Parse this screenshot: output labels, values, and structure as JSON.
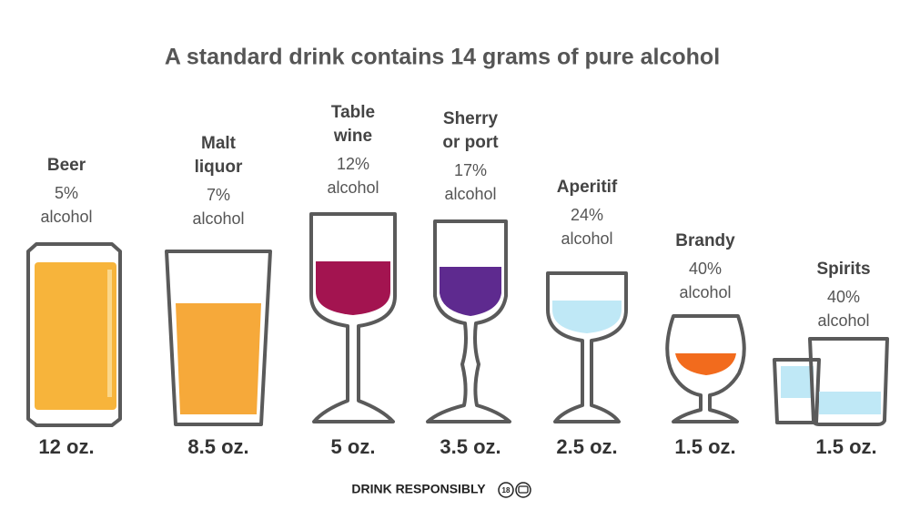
{
  "header": {
    "title": "A standard drink contains 14 grams of pure alcohol"
  },
  "drinks": [
    {
      "name": [
        "Beer"
      ],
      "abv": "5%",
      "unit": "alcohol",
      "volume": "12 oz."
    },
    {
      "name": [
        "Malt",
        "liquor"
      ],
      "abv": "7%",
      "unit": "alcohol",
      "volume": "8.5 oz."
    },
    {
      "name": [
        "Table",
        "wine"
      ],
      "abv": "12%",
      "unit": "alcohol",
      "volume": "5 oz."
    },
    {
      "name": [
        "Sherry",
        "or port"
      ],
      "abv": "17%",
      "unit": "alcohol",
      "volume": "3.5 oz."
    },
    {
      "name": [
        "Aperitif"
      ],
      "abv": "24%",
      "unit": "alcohol",
      "volume": "2.5 oz."
    },
    {
      "name": [
        "Brandy"
      ],
      "abv": "40%",
      "unit": "alcohol",
      "volume": "1.5 oz."
    },
    {
      "name": [
        "Spirits"
      ],
      "abv": "40%",
      "unit": "alcohol",
      "volume": "1.5 oz."
    }
  ],
  "footer": {
    "text": "DRINK RESPONSIBLY",
    "badge": "18"
  }
}
